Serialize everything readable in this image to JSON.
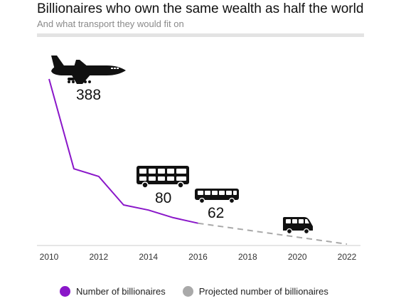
{
  "title": "Billionaires who own the same wealth as half the world",
  "subtitle": "And what transport they would fit on",
  "legend": {
    "actual_label": "Number of billionaires",
    "projected_label": "Projected number of billionaires"
  },
  "colors": {
    "actual": "#8a17c9",
    "projected": "#a9a9a9",
    "axis": "#cccccc",
    "rule": "#e3e3e3",
    "icons": "#111111"
  },
  "chart_data": {
    "type": "line",
    "title": "Billionaires who own the same wealth as half the world",
    "subtitle": "And what transport they would fit on",
    "xlabel": "",
    "ylabel": "",
    "xlim": [
      2010,
      2022
    ],
    "ylim": [
      0,
      388
    ],
    "grid": false,
    "x_ticks": [
      "2010",
      "2012",
      "2014",
      "2016",
      "2018",
      "2020",
      "2022"
    ],
    "legend_position": "bottom",
    "series": [
      {
        "name": "Number of billionaires",
        "style": "solid",
        "x": [
          2010,
          2011,
          2012,
          2013,
          2014,
          2015,
          2016
        ],
        "values": [
          388,
          177,
          159,
          92,
          80,
          62,
          49
        ]
      },
      {
        "name": "Projected number of billionaires",
        "style": "dashed",
        "x": [
          2016,
          2022
        ],
        "values": [
          49,
          0
        ]
      }
    ],
    "annotations": [
      {
        "x": 2010,
        "value": 388,
        "label": "388",
        "icon": "airplane-icon"
      },
      {
        "x": 2014,
        "value": 80,
        "label": "80",
        "icon": "double-decker-bus-icon"
      },
      {
        "x": 2015,
        "value": 62,
        "label": "62",
        "icon": "coach-bus-icon"
      },
      {
        "x": 2021,
        "value": null,
        "label": "",
        "icon": "minibus-icon"
      }
    ]
  }
}
